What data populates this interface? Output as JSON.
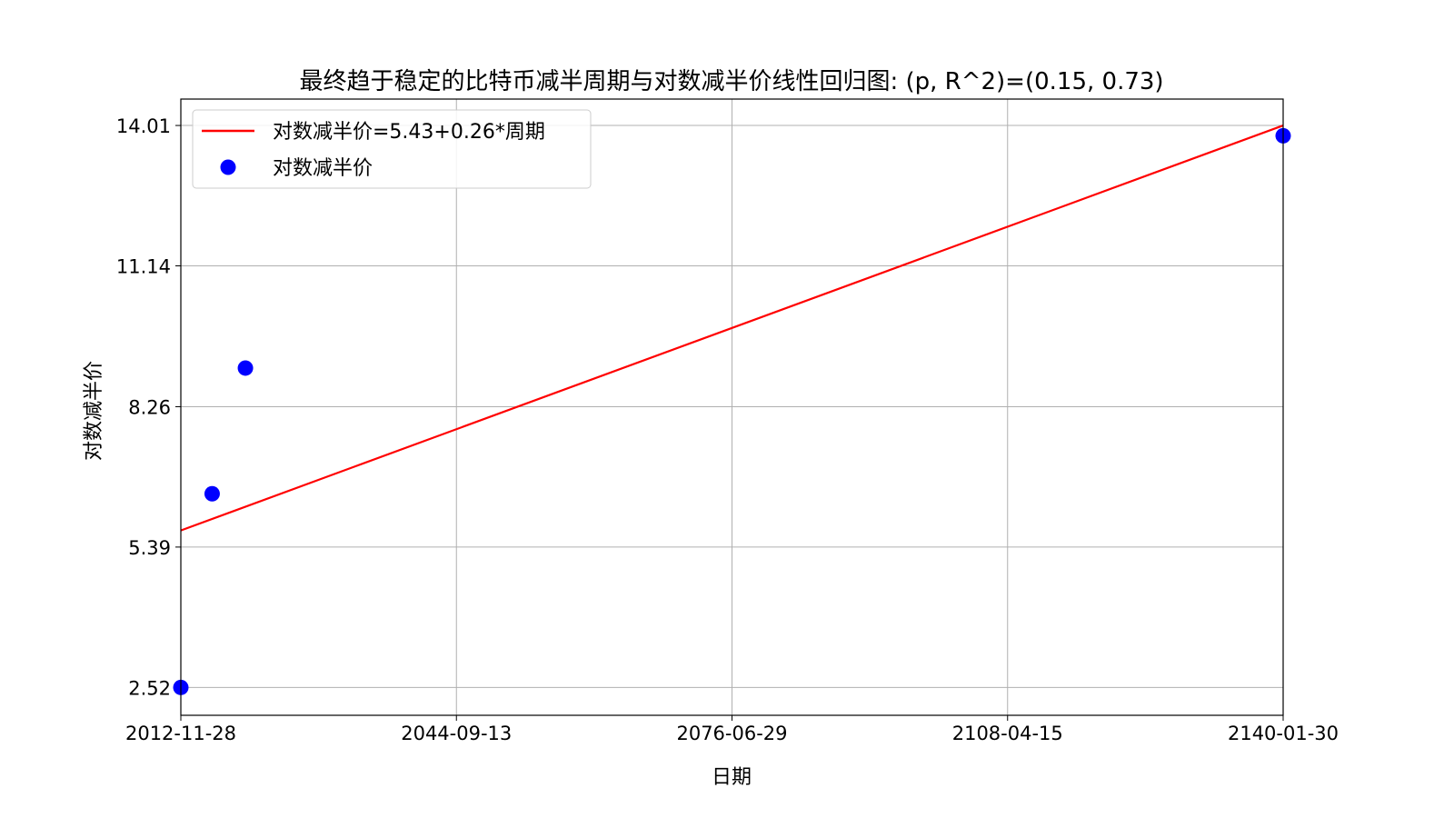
{
  "chart_data": {
    "type": "scatter",
    "title": "最终趋于稳定的比特币减半周期与对数减半价线性回归图: (p, R^2)=(0.15, 0.73)",
    "xlabel": "日期",
    "ylabel": "对数减半价",
    "x_ticks": [
      "2012-11-28",
      "2044-09-13",
      "2076-06-29",
      "2108-04-15",
      "2140-01-30"
    ],
    "xlim": [
      "2012-11-28",
      "2140-01-30"
    ],
    "y_ticks": [
      "2.52",
      "5.39",
      "8.26",
      "11.14",
      "14.01"
    ],
    "ylim": [
      1.95,
      14.55
    ],
    "grid": true,
    "legend_position": "upper-left",
    "series": [
      {
        "name": "对数减半价=5.43+0.26*周期",
        "kind": "line",
        "color": "#ff0000",
        "points": [
          {
            "x": "2012-11-28",
            "y": 5.73
          },
          {
            "x": "2140-01-30",
            "y": 14.01
          }
        ]
      },
      {
        "name": "对数减半价",
        "kind": "scatter",
        "color": "#0000ff",
        "points": [
          {
            "x": "2012-11-28",
            "y": 2.52
          },
          {
            "x": "2016-07-09",
            "y": 6.48
          },
          {
            "x": "2020-05-11",
            "y": 9.05
          },
          {
            "x": "2140-01-30",
            "y": 13.8
          }
        ]
      }
    ]
  }
}
